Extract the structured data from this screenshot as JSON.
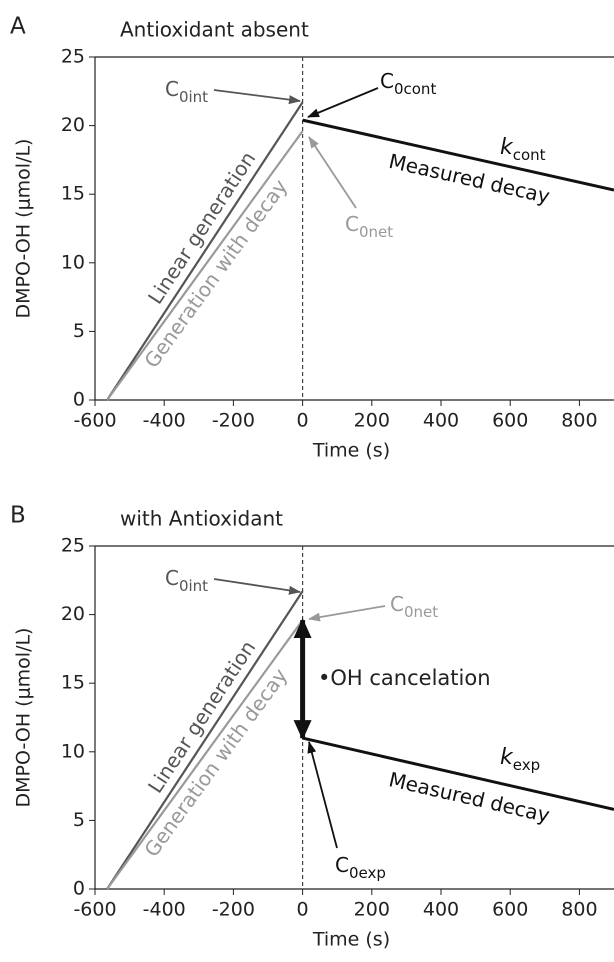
{
  "chart_data": [
    {
      "type": "line",
      "panel": "A",
      "title": "Antioxidant absent",
      "x_label": "Time (s)",
      "y_label": "DMPO-OH (μmol/L)",
      "xlim": [
        -600,
        900
      ],
      "ylim": [
        0,
        25
      ],
      "xticks": [
        -600,
        -400,
        -200,
        0,
        200,
        400,
        600,
        800
      ],
      "yticks": [
        0,
        5,
        10,
        15,
        20,
        25
      ],
      "vline": 0,
      "series": [
        {
          "name": "Linear generation",
          "color": "#555555",
          "x": [
            -565,
            0
          ],
          "values": [
            0,
            21.7
          ]
        },
        {
          "name": "Generation with decay",
          "color": "#999999",
          "x": [
            -565,
            0
          ],
          "values": [
            0,
            19.6
          ]
        },
        {
          "name": "Measured decay",
          "color": "#111111",
          "x": [
            0,
            900
          ],
          "values": [
            20.4,
            15.3
          ]
        }
      ],
      "annotations": [
        {
          "text": "C",
          "sub": "0int",
          "color": "#555555"
        },
        {
          "text": "C",
          "sub": "0cont",
          "color": "#111111"
        },
        {
          "text": "C",
          "sub": "0net",
          "color": "#999999"
        },
        {
          "text": "k",
          "sub": "cont",
          "color": "#111111"
        }
      ]
    },
    {
      "type": "line",
      "panel": "B",
      "title": "with Antioxidant",
      "x_label": "Time (s)",
      "y_label": "DMPO-OH (μmol/L)",
      "xlim": [
        -600,
        900
      ],
      "ylim": [
        0,
        25
      ],
      "xticks": [
        -600,
        -400,
        -200,
        0,
        200,
        400,
        600,
        800
      ],
      "yticks": [
        0,
        5,
        10,
        15,
        20,
        25
      ],
      "vline": 0,
      "series": [
        {
          "name": "Linear generation",
          "color": "#555555",
          "x": [
            -565,
            0
          ],
          "values": [
            0,
            21.7
          ]
        },
        {
          "name": "Generation with decay",
          "color": "#999999",
          "x": [
            -565,
            0
          ],
          "values": [
            0,
            19.6
          ]
        },
        {
          "name": "Measured decay",
          "color": "#111111",
          "x": [
            0,
            900
          ],
          "values": [
            11,
            5.8
          ]
        }
      ],
      "annotations": [
        {
          "text": "C",
          "sub": "0int",
          "color": "#555555"
        },
        {
          "text": "C",
          "sub": "0net",
          "color": "#999999"
        },
        {
          "text": "C",
          "sub": "0exp",
          "color": "#111111"
        },
        {
          "text": "k",
          "sub": "exp",
          "color": "#111111"
        }
      ],
      "cancelation": {
        "label": "•OH cancelation",
        "from": 19.6,
        "to": 11
      }
    }
  ]
}
